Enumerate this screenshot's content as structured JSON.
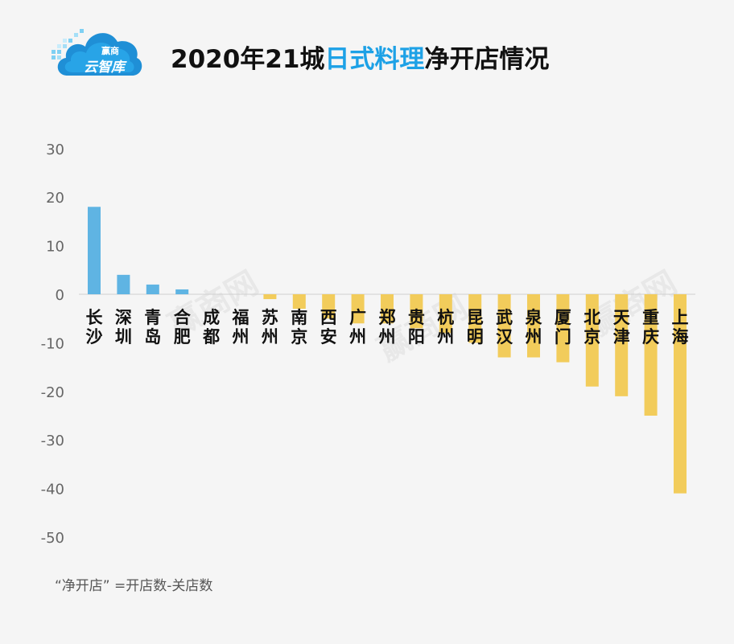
{
  "logo": {
    "line1": "赢商",
    "line2": "云智库"
  },
  "title": {
    "prefix": "2020年21城",
    "highlight": "日式料理",
    "suffix": "净开店情况"
  },
  "footnote": "“净开店” =开店数-关店数",
  "watermark": "赢商网",
  "colors": {
    "positive": "#5fb4e3",
    "negative": "#f2cc5b",
    "title_highlight": "#1da1e6",
    "axis": "#666666"
  },
  "chart_data": {
    "type": "bar",
    "title": "2020年21城日式料理净开店情况",
    "xlabel": "",
    "ylabel": "",
    "ylim": [
      -50,
      30
    ],
    "yticks": [
      30,
      20,
      10,
      0,
      -10,
      -20,
      -30,
      -40,
      -50
    ],
    "categories": [
      "长沙",
      "深圳",
      "青岛",
      "合肥",
      "成都",
      "福州",
      "苏州",
      "南京",
      "西安",
      "广州",
      "郑州",
      "贵阳",
      "杭州",
      "昆明",
      "武汉",
      "泉州",
      "厦门",
      "北京",
      "天津",
      "重庆",
      "上海"
    ],
    "values": [
      18,
      4,
      2,
      1,
      0,
      0,
      -1,
      -3,
      -5,
      -6,
      -6,
      -7,
      -8,
      -10,
      -13,
      -13,
      -14,
      -19,
      -21,
      -25,
      -41
    ]
  }
}
